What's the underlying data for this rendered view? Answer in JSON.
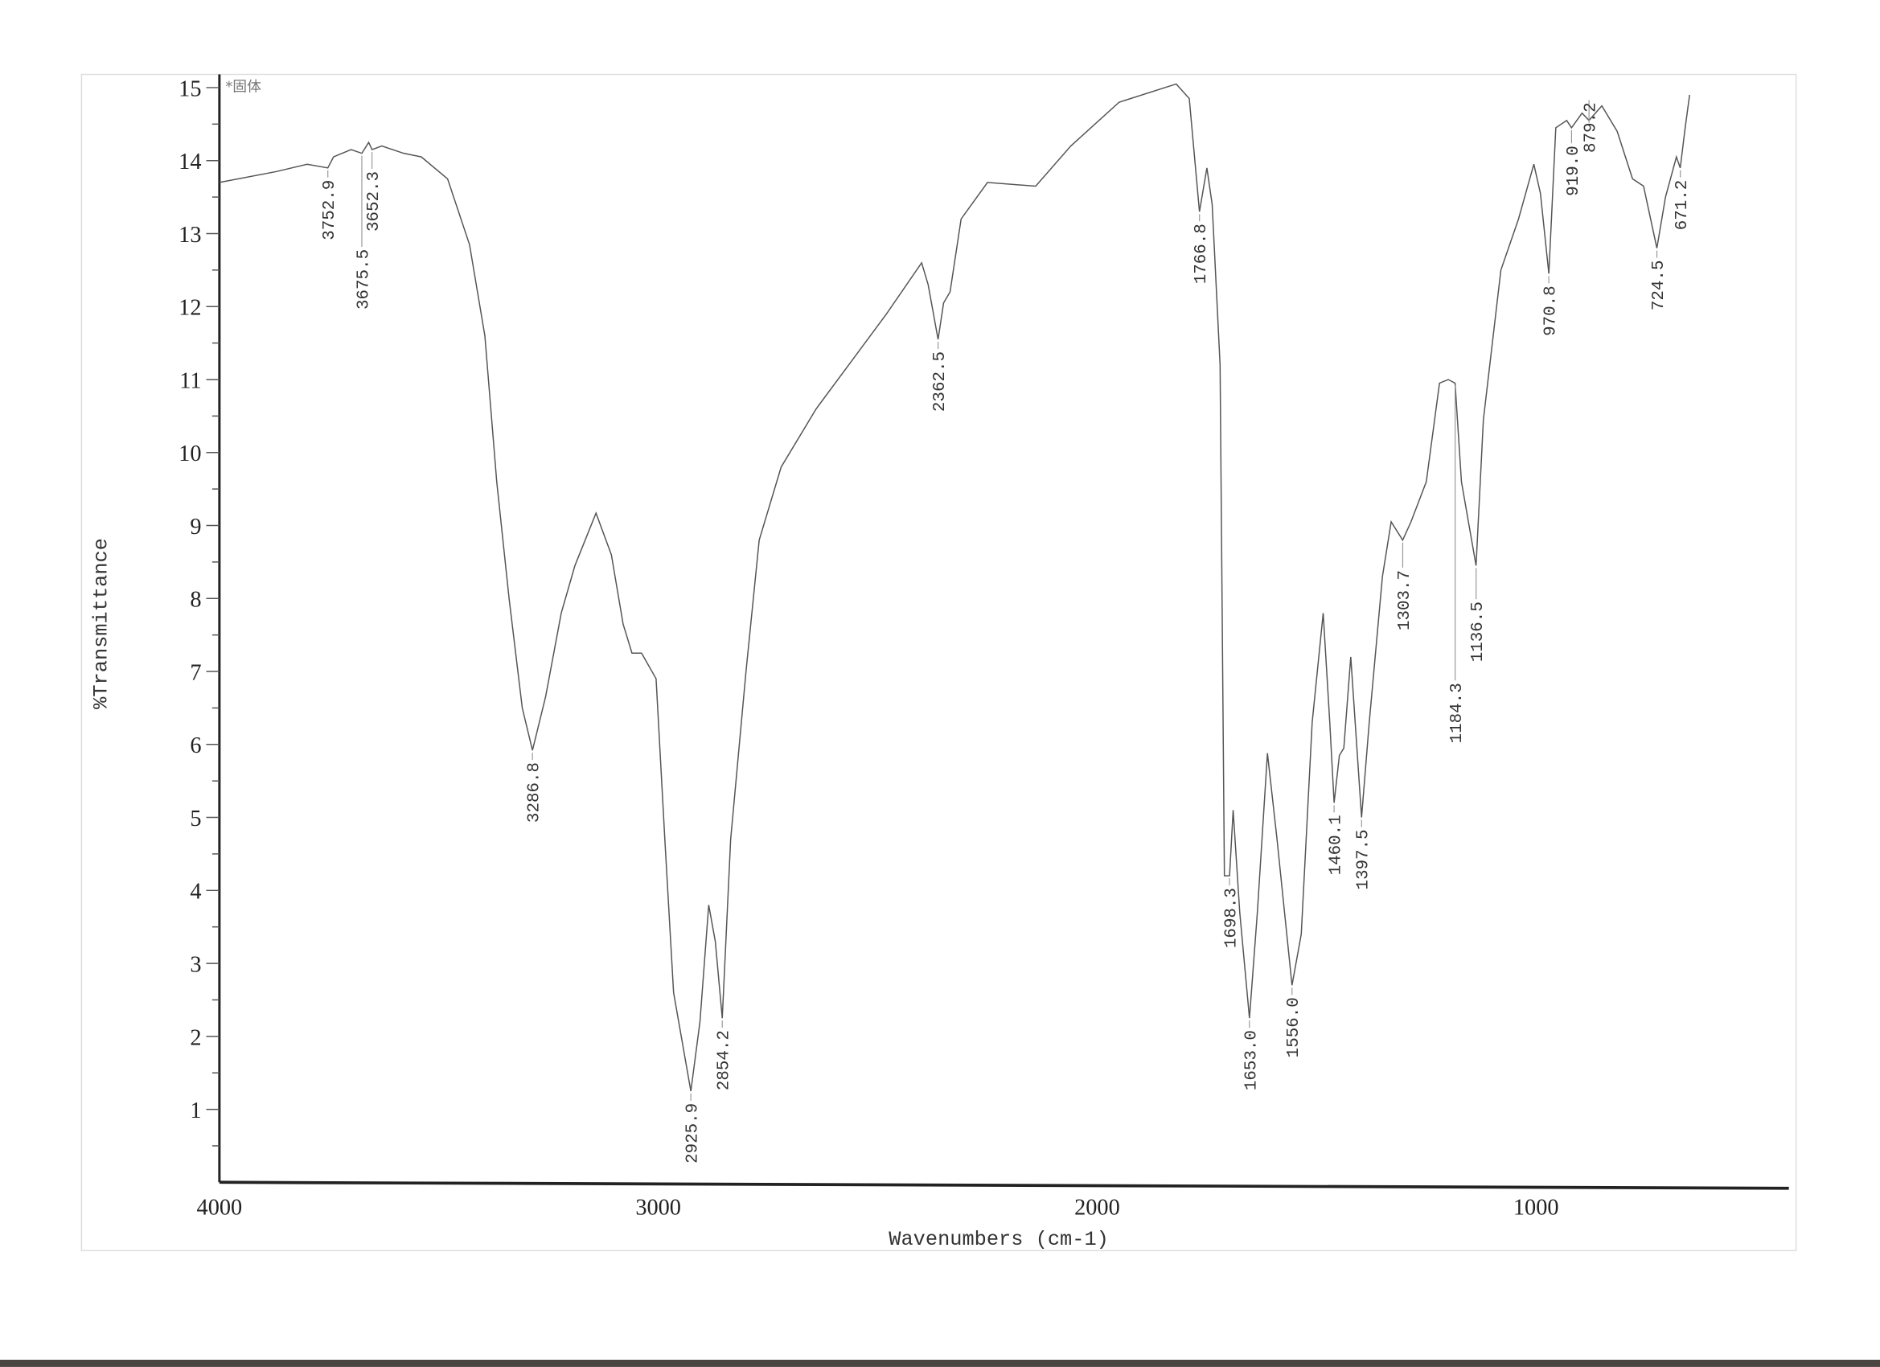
{
  "chart_data": {
    "type": "line",
    "title": "",
    "note": "*固体",
    "xlabel": "Wavenumbers (cm-1)",
    "ylabel": "%Transmittance",
    "xlim": [
      4000,
      400
    ],
    "ylim": [
      0,
      15
    ],
    "x_reversed": true,
    "grid": false,
    "x_ticks": [
      4000,
      3000,
      2000,
      1000
    ],
    "y_ticks": [
      1,
      2,
      3,
      4,
      5,
      6,
      7,
      8,
      9,
      10,
      11,
      12,
      13,
      14,
      15
    ],
    "line_color": "#555555",
    "series": [
      {
        "points": [
          [
            4000,
            13.7
          ],
          [
            3870,
            13.85
          ],
          [
            3800,
            13.95
          ],
          [
            3752.9,
            13.9
          ],
          [
            3740,
            14.05
          ],
          [
            3700,
            14.15
          ],
          [
            3675.5,
            14.1
          ],
          [
            3660,
            14.25
          ],
          [
            3652.3,
            14.15
          ],
          [
            3630,
            14.2
          ],
          [
            3580,
            14.1
          ],
          [
            3540,
            14.05
          ],
          [
            3480,
            13.75
          ],
          [
            3430,
            12.85
          ],
          [
            3395,
            11.6
          ],
          [
            3368,
            9.6
          ],
          [
            3340,
            8.0
          ],
          [
            3310,
            6.5
          ],
          [
            3286.8,
            5.92
          ],
          [
            3257,
            6.65
          ],
          [
            3221,
            7.8
          ],
          [
            3190,
            8.45
          ],
          [
            3142,
            9.17
          ],
          [
            3107,
            8.6
          ],
          [
            3080,
            7.65
          ],
          [
            3060,
            7.25
          ],
          [
            3038,
            7.25
          ],
          [
            3005,
            6.9
          ],
          [
            2985,
            4.7
          ],
          [
            2965,
            2.6
          ],
          [
            2925.9,
            1.25
          ],
          [
            2905,
            2.2
          ],
          [
            2885,
            3.8
          ],
          [
            2870,
            3.3
          ],
          [
            2854.2,
            2.25
          ],
          [
            2835,
            4.7
          ],
          [
            2800,
            7.0
          ],
          [
            2770,
            8.8
          ],
          [
            2720,
            9.8
          ],
          [
            2640,
            10.6
          ],
          [
            2560,
            11.25
          ],
          [
            2480,
            11.9
          ],
          [
            2400,
            12.6
          ],
          [
            2385,
            12.3
          ],
          [
            2362.5,
            11.55
          ],
          [
            2350,
            12.05
          ],
          [
            2335,
            12.2
          ],
          [
            2310,
            13.2
          ],
          [
            2250,
            13.7
          ],
          [
            2140,
            13.65
          ],
          [
            2060,
            14.2
          ],
          [
            1950,
            14.8
          ],
          [
            1820,
            15.05
          ],
          [
            1790,
            14.85
          ],
          [
            1766.8,
            13.3
          ],
          [
            1750,
            13.9
          ],
          [
            1738,
            13.4
          ],
          [
            1720,
            11.2
          ],
          [
            1710,
            4.2
          ],
          [
            1698.3,
            4.2
          ],
          [
            1690,
            5.1
          ],
          [
            1675,
            3.7
          ],
          [
            1653.0,
            2.25
          ],
          [
            1635,
            3.7
          ],
          [
            1612,
            5.88
          ],
          [
            1590,
            4.7
          ],
          [
            1556.0,
            2.7
          ],
          [
            1535,
            3.4
          ],
          [
            1510,
            6.3
          ],
          [
            1485,
            7.8
          ],
          [
            1470,
            6.3
          ],
          [
            1460.1,
            5.2
          ],
          [
            1448,
            5.85
          ],
          [
            1438,
            5.95
          ],
          [
            1422,
            7.2
          ],
          [
            1397.5,
            5.0
          ],
          [
            1380,
            6.3
          ],
          [
            1350,
            8.3
          ],
          [
            1330,
            9.05
          ],
          [
            1303.7,
            8.8
          ],
          [
            1285,
            9.05
          ],
          [
            1250,
            9.6
          ],
          [
            1220,
            10.95
          ],
          [
            1200,
            11.0
          ],
          [
            1184.3,
            10.95
          ],
          [
            1170,
            9.6
          ],
          [
            1136.5,
            8.45
          ],
          [
            1120,
            10.45
          ],
          [
            1080,
            12.5
          ],
          [
            1040,
            13.2
          ],
          [
            1005,
            13.95
          ],
          [
            990,
            13.55
          ],
          [
            970.8,
            12.45
          ],
          [
            955,
            14.45
          ],
          [
            930,
            14.55
          ],
          [
            919.0,
            14.45
          ],
          [
            895,
            14.65
          ],
          [
            879.2,
            14.55
          ],
          [
            850,
            14.75
          ],
          [
            815,
            14.4
          ],
          [
            780,
            13.75
          ],
          [
            755,
            13.65
          ],
          [
            724.5,
            12.8
          ],
          [
            705,
            13.5
          ],
          [
            680,
            14.05
          ],
          [
            671.2,
            13.9
          ],
          [
            660,
            14.45
          ],
          [
            650,
            14.9
          ]
        ]
      }
    ],
    "peak_labels": [
      {
        "text": "3752.9",
        "x": 3752.9,
        "y": 13.9
      },
      {
        "text": "3675.5",
        "x": 3675.5,
        "y": 14.1
      },
      {
        "text": "3652.3",
        "x": 3652.3,
        "y": 14.15
      },
      {
        "text": "3286.8",
        "x": 3286.8,
        "y": 5.92
      },
      {
        "text": "2925.9",
        "x": 2925.9,
        "y": 1.25
      },
      {
        "text": "2854.2",
        "x": 2854.2,
        "y": 2.25
      },
      {
        "text": "2362.5",
        "x": 2362.5,
        "y": 11.55
      },
      {
        "text": "1766.8",
        "x": 1766.8,
        "y": 13.3
      },
      {
        "text": "1698.3",
        "x": 1698.3,
        "y": 4.2
      },
      {
        "text": "1653.0",
        "x": 1653.0,
        "y": 2.25
      },
      {
        "text": "1556.0",
        "x": 1556.0,
        "y": 2.7
      },
      {
        "text": "1460.1",
        "x": 1460.1,
        "y": 5.2
      },
      {
        "text": "1397.5",
        "x": 1397.5,
        "y": 5.0
      },
      {
        "text": "1303.7",
        "x": 1303.7,
        "y": 8.8
      },
      {
        "text": "1184.3",
        "x": 1184.3,
        "y": 10.95
      },
      {
        "text": "1136.5",
        "x": 1136.5,
        "y": 8.45
      },
      {
        "text": "970.8",
        "x": 970.8,
        "y": 12.45
      },
      {
        "text": "919.0",
        "x": 919.0,
        "y": 14.45
      },
      {
        "text": "879.2",
        "x": 879.2,
        "y": 14.55
      },
      {
        "text": "724.5",
        "x": 724.5,
        "y": 12.8
      },
      {
        "text": "671.2",
        "x": 671.2,
        "y": 13.9
      }
    ]
  }
}
